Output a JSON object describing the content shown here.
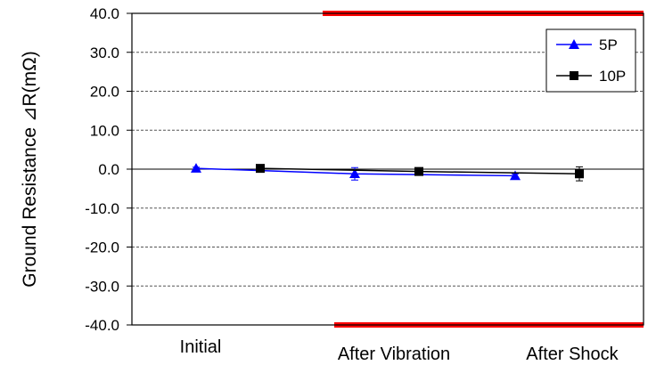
{
  "chart_data": {
    "type": "line",
    "title": "",
    "xlabel": "",
    "ylabel": "Ground Resistance ⊿R(mΩ)",
    "ylim": [
      -40,
      40
    ],
    "yticks": [
      "40.0",
      "30.0",
      "20.0",
      "10.0",
      "0.0",
      "-10.0",
      "-20.0",
      "-30.0",
      "-40.0"
    ],
    "categories": [
      "Initial",
      "After Vibration",
      "After Shock"
    ],
    "grid": "horizontal-dashed",
    "legend_position": "top-right",
    "limit_lines": [
      40,
      -40
    ],
    "limit_color": "#ff0000",
    "series": [
      {
        "name": "5P",
        "color": "#0000ff",
        "marker": "triangle",
        "values": [
          0.2,
          -1.2,
          -1.7
        ],
        "error": [
          0.3,
          1.6,
          0.5
        ]
      },
      {
        "name": "10P",
        "color": "#000000",
        "marker": "square",
        "values": [
          0.2,
          -0.6,
          -1.2
        ],
        "error": [
          0.3,
          0.7,
          1.8
        ]
      }
    ]
  }
}
